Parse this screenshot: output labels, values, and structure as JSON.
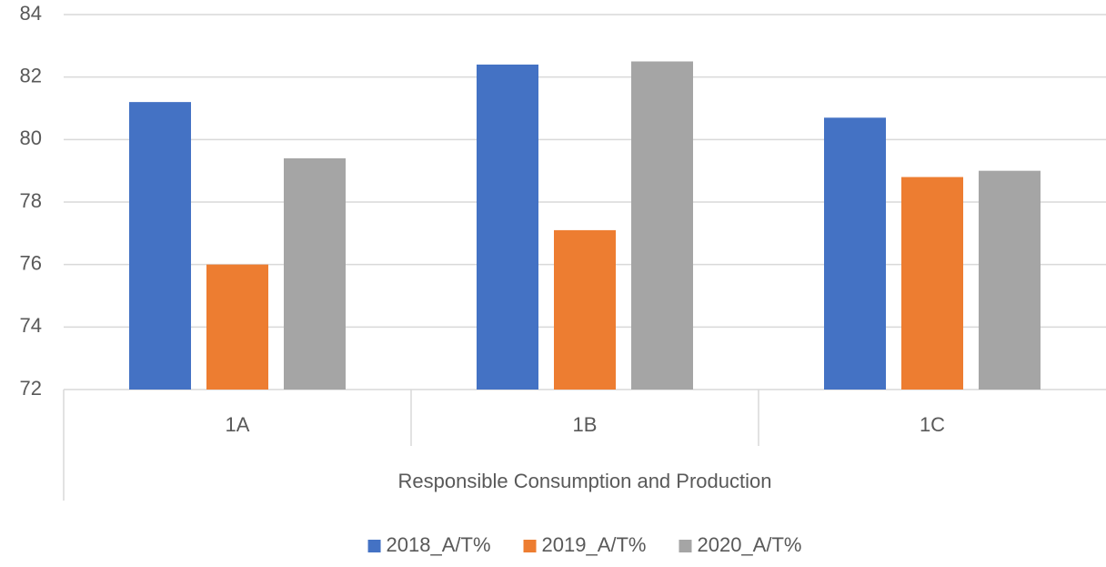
{
  "chart_data": {
    "type": "bar",
    "categories": [
      "1A",
      "1B",
      "1C"
    ],
    "category_group": "Responsible Consumption and Production",
    "series": [
      {
        "name": "2018_A/T%",
        "color": "#4472c4",
        "values": [
          81.2,
          82.4,
          80.7
        ]
      },
      {
        "name": "2019_A/T%",
        "color": "#ed7d31",
        "values": [
          76.0,
          77.1,
          78.8
        ]
      },
      {
        "name": "2020_A/T%",
        "color": "#a5a5a5",
        "values": [
          79.4,
          82.5,
          79.0
        ]
      }
    ],
    "ylim": [
      72,
      84
    ],
    "yticks": [
      72,
      74,
      76,
      78,
      80,
      82,
      84
    ],
    "grid": true,
    "legend": "bottom"
  }
}
